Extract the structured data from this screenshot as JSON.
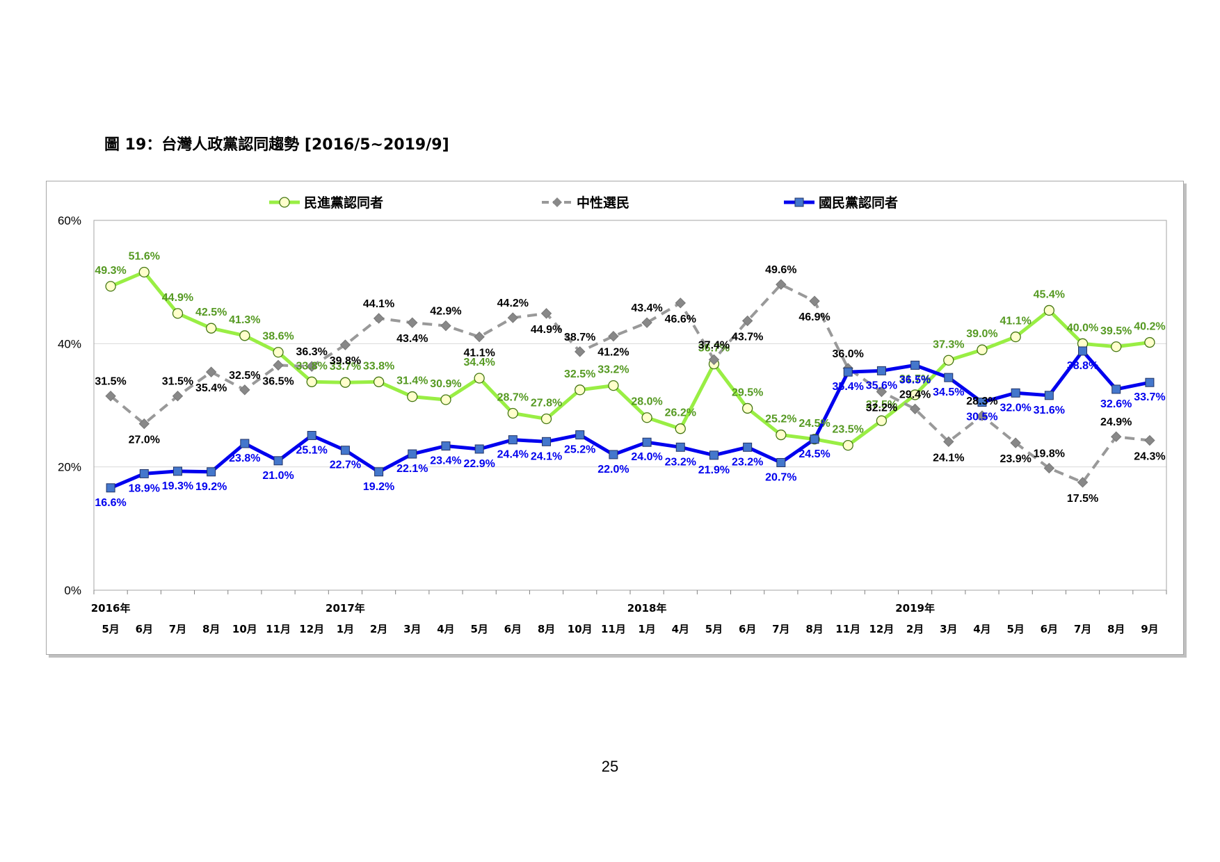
{
  "page": {
    "title": "圖 19：台灣人政黨認同趨勢  [2016/5~2019/9]",
    "page_number": "25"
  },
  "colors": {
    "green": "#99ee44",
    "green_label": "#559922",
    "gray": "#999999",
    "gray_label": "#000000",
    "blue": "#0000ee",
    "blue_marker": "#4477cc",
    "blue_label": "#0000ee",
    "grid": "#d9d9d9",
    "plot_border": "#a6a6a6"
  },
  "chart_data": {
    "type": "line",
    "title": "",
    "xlabel": "",
    "ylabel": "",
    "ylim": [
      0,
      60
    ],
    "y_ticks": [
      "0%",
      "20%",
      "40%",
      "60%"
    ],
    "grid": true,
    "legend_position": "top",
    "categories": [
      "5月",
      "6月",
      "7月",
      "8月",
      "10月",
      "11月",
      "12月",
      "1月",
      "2月",
      "3月",
      "4月",
      "5月",
      "6月",
      "8月",
      "10月",
      "11月",
      "1月",
      "4月",
      "5月",
      "6月",
      "7月",
      "8月",
      "11月",
      "12月",
      "2月",
      "3月",
      "4月",
      "5月",
      "6月",
      "7月",
      "8月",
      "9月"
    ],
    "year_labels": [
      {
        "label": "2016年",
        "index": 0
      },
      {
        "label": "2017年",
        "index": 7
      },
      {
        "label": "2018年",
        "index": 16
      },
      {
        "label": "2019年",
        "index": 24
      }
    ],
    "series": [
      {
        "name": "民進黨認同者",
        "color": "#99ee44",
        "label_color": "#559922",
        "marker": "circle",
        "dash": false,
        "values": [
          49.3,
          51.6,
          44.9,
          42.5,
          41.3,
          38.6,
          33.8,
          33.7,
          33.8,
          31.4,
          30.9,
          34.4,
          28.7,
          27.8,
          32.5,
          33.2,
          28.0,
          26.2,
          36.7,
          29.5,
          25.2,
          24.5,
          23.5,
          27.5,
          31.7,
          37.3,
          39.0,
          41.1,
          45.4,
          40.0,
          39.5,
          40.2
        ],
        "labels": [
          "49.3%",
          "51.6%",
          "44.9%",
          "42.5%",
          "41.3%",
          "38.6%",
          "33.8%",
          "33.7%",
          "33.8%",
          "31.4%",
          "30.9%",
          "34.4%",
          "28.7%",
          "27.8%",
          "32.5%",
          "33.2%",
          "28.0%",
          "26.2%",
          "36.7%",
          "29.5%",
          "25.2%",
          "24.5%",
          "23.5%",
          "27.5%",
          "31.7%",
          "37.3%",
          "39.0%",
          "41.1%",
          "45.4%",
          "40.0%",
          "39.5%",
          "40.2%"
        ]
      },
      {
        "name": "中性選民",
        "color": "#999999",
        "label_color": "#000000",
        "marker": "diamond",
        "dash": true,
        "values": [
          31.5,
          27.0,
          31.5,
          35.4,
          32.5,
          36.5,
          36.3,
          39.8,
          44.1,
          43.4,
          42.9,
          41.1,
          44.2,
          44.9,
          38.7,
          41.2,
          43.4,
          46.6,
          37.4,
          43.7,
          49.6,
          46.9,
          36.0,
          32.2,
          29.4,
          24.1,
          28.3,
          23.9,
          19.8,
          17.5,
          24.9,
          24.3
        ],
        "labels": [
          "31.5%",
          "27.0%",
          "31.5%",
          "35.4%",
          "32.5%",
          "36.5%",
          "36.3%",
          "39.8%",
          "44.1%",
          "43.4%",
          "42.9%",
          "41.1%",
          "44.2%",
          "44.9%",
          "38.7%",
          "41.2%",
          "43.4%",
          "46.6%",
          "37.4%",
          "43.7%",
          "49.6%",
          "46.9%",
          "36.0%",
          "32.2%",
          "29.4%",
          "24.1%",
          "28.3%",
          "23.9%",
          "19.8%",
          "17.5%",
          "24.9%",
          "24.3%"
        ]
      },
      {
        "name": "國民黨認同者",
        "color": "#0000ee",
        "label_color": "#0000ee",
        "marker": "square",
        "dash": false,
        "values": [
          16.6,
          18.9,
          19.3,
          19.2,
          23.8,
          21.0,
          25.1,
          22.7,
          19.2,
          22.1,
          23.4,
          22.9,
          24.4,
          24.1,
          25.2,
          22.0,
          24.0,
          23.2,
          21.9,
          23.2,
          20.7,
          24.5,
          35.4,
          35.6,
          36.5,
          34.5,
          30.5,
          32.0,
          31.6,
          38.8,
          32.6,
          33.7
        ],
        "labels": [
          "16.6%",
          "18.9%",
          "19.3%",
          "19.2%",
          "23.8%",
          "21.0%",
          "25.1%",
          "22.7%",
          "19.2%",
          "22.1%",
          "23.4%",
          "22.9%",
          "24.4%",
          "24.1%",
          "25.2%",
          "22.0%",
          "24.0%",
          "23.2%",
          "21.9%",
          "23.2%",
          "20.7%",
          "24.5%",
          "35.4%",
          "35.6%",
          "36.5%",
          "34.5%",
          "30.5%",
          "32.0%",
          "31.6%",
          "38.8%",
          "32.6%",
          "33.7%"
        ]
      }
    ]
  }
}
